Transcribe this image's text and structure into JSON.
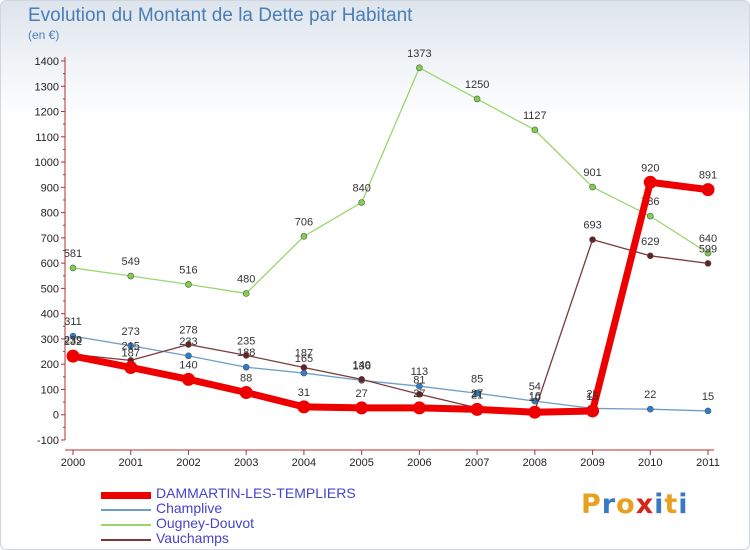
{
  "header": {
    "title": "Evolution du Montant de la Dette par Habitant",
    "unit": "(en €)"
  },
  "logo": {
    "text": "Proxiti"
  },
  "chart_data": {
    "type": "line",
    "title": "Evolution du Montant de la Dette par Habitant",
    "ylabel": "(en €)",
    "xlabel": "",
    "categories": [
      "2000",
      "2001",
      "2002",
      "2003",
      "2004",
      "2005",
      "2006",
      "2007",
      "2008",
      "2009",
      "2010",
      "2011"
    ],
    "ylim": [
      -100,
      1400
    ],
    "yticks": [
      -100,
      0,
      100,
      200,
      300,
      400,
      500,
      600,
      700,
      800,
      900,
      1000,
      1100,
      1200,
      1300,
      1400
    ],
    "grid": false,
    "legend": "bottom",
    "series": [
      {
        "name": "Champlive",
        "color": "#6e9dc8",
        "marker": "#2b7fd0",
        "width": 1.3,
        "values": [
          311,
          273,
          233,
          188,
          165,
          136,
          113,
          85,
          54,
          25,
          22,
          15
        ],
        "labels": [
          "311",
          "273",
          "233",
          "188",
          "165",
          "136",
          "113",
          "85",
          "54",
          "25",
          "22",
          "15"
        ]
      },
      {
        "name": "Ougney-Douvot",
        "color": "#9ad66e",
        "marker": "#7fd14a",
        "width": 1.3,
        "values": [
          581,
          549,
          516,
          480,
          706,
          840,
          1373,
          1250,
          1127,
          901,
          786,
          640
        ],
        "labels": [
          "581",
          "549",
          "516",
          "480",
          "706",
          "840",
          "1373",
          "1250",
          "1127",
          "901",
          "786",
          "640"
        ]
      },
      {
        "name": "Vauchamps",
        "color": "#7a3a3a",
        "marker": "#6b2020",
        "width": 1.3,
        "values": [
          239,
          215,
          278,
          235,
          187,
          140,
          81,
          27,
          16,
          693,
          629,
          599
        ],
        "labels": [
          "239",
          "215",
          "278",
          "235",
          "187",
          "140",
          "81",
          "27",
          "16",
          "693",
          "629",
          "599"
        ]
      },
      {
        "name": "DAMMARTIN-LES-TEMPLIERS",
        "color": "#ee0000",
        "marker": "#ee0000",
        "width": 7,
        "values": [
          232,
          187,
          140,
          88,
          31,
          27,
          27,
          21,
          10,
          15,
          920,
          891
        ],
        "labels": [
          "232",
          "187",
          "140",
          "88",
          "31",
          "27",
          "27",
          "21",
          "10",
          "15",
          "920",
          "891"
        ]
      }
    ],
    "legend_order": [
      "DAMMARTIN-LES-TEMPLIERS",
      "Champlive",
      "Ougney-Douvot",
      "Vauchamps"
    ]
  }
}
